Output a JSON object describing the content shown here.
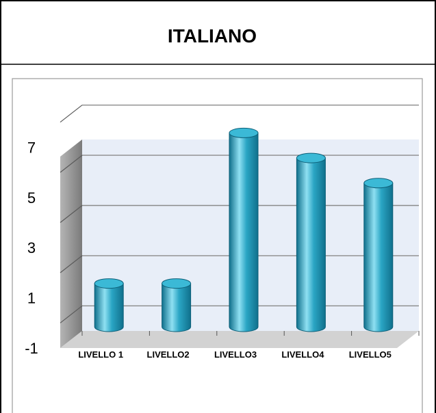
{
  "chart_data": {
    "type": "bar",
    "title": "ITALIANO",
    "categories": [
      "LIVELLO 1",
      "LIVELLO2",
      "LIVELLO3",
      "LIVELLO4",
      "LIVELLO5"
    ],
    "values": [
      1,
      1,
      7,
      6,
      5
    ],
    "yticks": [
      "7",
      "5",
      "3",
      "1",
      "-1"
    ],
    "ylim": [
      -1,
      8
    ],
    "grid": true,
    "legend": "none",
    "style": "3d-cylinder",
    "colors": {
      "bar": "#2aa5c4",
      "bar_light": "#8fe0f2",
      "bar_dark": "#10708c",
      "wall": "#e8eef8",
      "wall_side": "#8a8a8a",
      "floor": "#d2d2d2"
    }
  }
}
